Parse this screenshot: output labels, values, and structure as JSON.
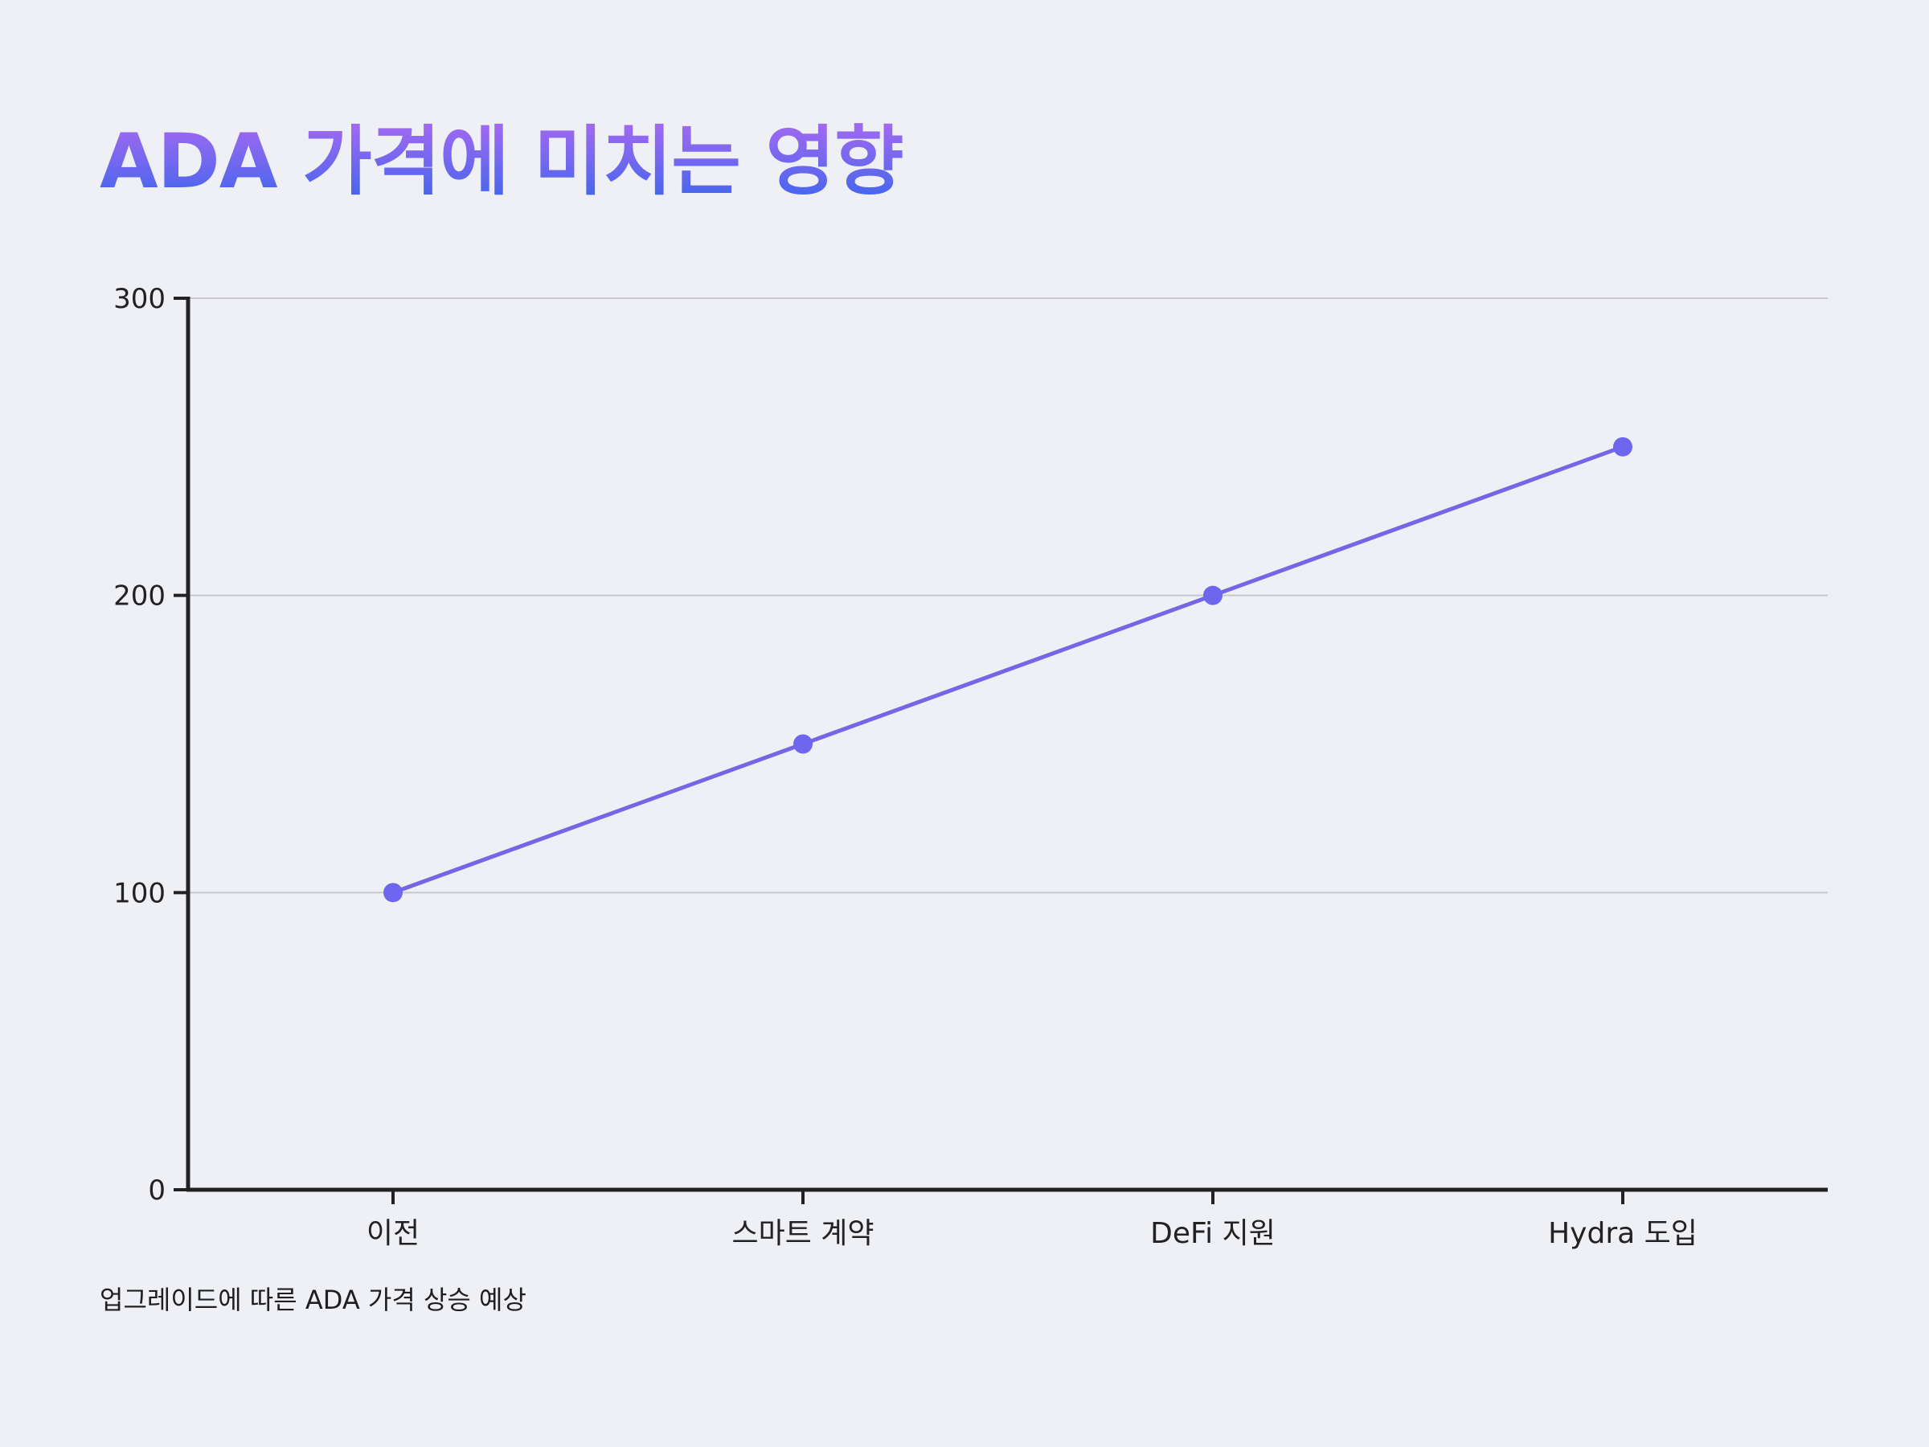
{
  "chart_data": {
    "type": "line",
    "title": "ADA 가격에 미치는 영향",
    "categories": [
      "이전",
      "스마트 계약",
      "DeFi 지원",
      "Hydra 도입"
    ],
    "series": [
      {
        "values": [
          100,
          150,
          200,
          250
        ]
      }
    ],
    "ylim": [
      0,
      300
    ],
    "yticks": [
      0,
      100,
      200,
      300
    ],
    "xlabel": "",
    "ylabel": "",
    "grid": true,
    "legend": "none",
    "caption": "업그레이드에 따른 ADA 가격 상승 예상"
  },
  "colors": {
    "line": "#7466e6",
    "point": "#6f66f0",
    "axis": "#222222",
    "grid": "#c8c8cc",
    "title_start": "#a569f0",
    "title_end": "#3f66ee",
    "background": "#eff0f5"
  }
}
